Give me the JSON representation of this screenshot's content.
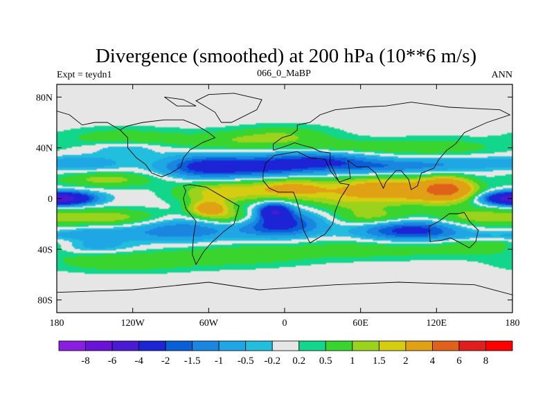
{
  "chart_data": {
    "type": "heatmap",
    "title": "Divergence (smoothed) at 200 hPa (10**6 m/s)",
    "left_string": "Expt = teydn1",
    "center_string": "066_0_MaBP",
    "right_string": "ANN",
    "x_range": [
      -180,
      180
    ],
    "y_range": [
      -90,
      90
    ],
    "x_ticks": [
      {
        "value": -180,
        "label": "180"
      },
      {
        "value": -120,
        "label": "120W"
      },
      {
        "value": -60,
        "label": "60W"
      },
      {
        "value": 0,
        "label": "0"
      },
      {
        "value": 60,
        "label": "60E"
      },
      {
        "value": 120,
        "label": "120E"
      },
      {
        "value": 180,
        "label": "180"
      }
    ],
    "y_ticks": [
      {
        "value": 80,
        "label": "80N"
      },
      {
        "value": 40,
        "label": "40N"
      },
      {
        "value": 0,
        "label": "0"
      },
      {
        "value": -40,
        "label": "40S"
      },
      {
        "value": -80,
        "label": "80S"
      }
    ],
    "levels": [
      "-8",
      "-6",
      "-4",
      "-2",
      "-1.5",
      "-1",
      "-0.5",
      "-0.2",
      "0.2",
      "0.5",
      "1",
      "1.5",
      "2",
      "4",
      "6",
      "8"
    ],
    "colors": [
      "#8a1ee0",
      "#6a12d8",
      "#4a1ad2",
      "#1c24d6",
      "#0a5ed8",
      "#1a86e0",
      "#1fa6e4",
      "#22bede",
      "#e6e6e6",
      "#12d68c",
      "#3ad42e",
      "#9ad21c",
      "#d6cc10",
      "#e0a214",
      "#e0621a",
      "#e01e1e",
      "#ff0000"
    ],
    "fields": [
      {
        "lon": -170,
        "lat": 0,
        "value": -3,
        "rlon": 22,
        "rlat": 5
      },
      {
        "lon": 175,
        "lat": 0,
        "value": -3,
        "rlon": 20,
        "rlat": 5
      },
      {
        "lon": -140,
        "lat": 15,
        "value": 1.2,
        "rlon": 40,
        "rlat": 6
      },
      {
        "lon": -140,
        "lat": -15,
        "value": 1.3,
        "rlon": 45,
        "rlat": 7
      },
      {
        "lon": -155,
        "lat": 28,
        "value": -0.8,
        "rlon": 30,
        "rlat": 6
      },
      {
        "lon": -150,
        "lat": -28,
        "value": -0.9,
        "rlon": 35,
        "rlat": 6
      },
      {
        "lon": -130,
        "lat": 48,
        "value": 0.8,
        "rlon": 45,
        "rlat": 8
      },
      {
        "lon": -130,
        "lat": -50,
        "value": 0.9,
        "rlon": 55,
        "rlat": 8
      },
      {
        "lon": -125,
        "lat": 40,
        "value": -0.7,
        "rlon": 30,
        "rlat": 5
      },
      {
        "lon": -150,
        "lat": -38,
        "value": -0.8,
        "rlon": 30,
        "rlat": 5
      },
      {
        "lon": -80,
        "lat": -25,
        "value": -1.5,
        "rlon": 40,
        "rlat": 9
      },
      {
        "lon": -60,
        "lat": 25,
        "value": -2.5,
        "rlon": 35,
        "rlat": 9
      },
      {
        "lon": -50,
        "lat": 5,
        "value": 1.8,
        "rlon": 35,
        "rlat": 9
      },
      {
        "lon": -60,
        "lat": -8,
        "value": 2.5,
        "rlon": 15,
        "rlat": 6
      },
      {
        "lon": -40,
        "lat": -15,
        "value": 1.5,
        "rlon": 25,
        "rlat": 7
      },
      {
        "lon": -45,
        "lat": 45,
        "value": 0.8,
        "rlon": 55,
        "rlat": 8
      },
      {
        "lon": -40,
        "lat": -45,
        "value": 0.8,
        "rlon": 60,
        "rlat": 9
      },
      {
        "lon": -10,
        "lat": 25,
        "value": -1.8,
        "rlon": 35,
        "rlat": 8
      },
      {
        "lon": -5,
        "lat": -20,
        "value": -2.5,
        "rlon": 32,
        "rlat": 10
      },
      {
        "lon": -8,
        "lat": -10,
        "value": -3.5,
        "rlon": 12,
        "rlat": 6
      },
      {
        "lon": 5,
        "lat": 8,
        "value": 2.2,
        "rlon": 30,
        "rlat": 8
      },
      {
        "lon": 0,
        "lat": 50,
        "value": 0.8,
        "rlon": 40,
        "rlat": 8
      },
      {
        "lon": 30,
        "lat": 30,
        "value": -1.8,
        "rlon": 40,
        "rlat": 8
      },
      {
        "lon": 50,
        "lat": 0,
        "value": 1.3,
        "rlon": 35,
        "rlat": 10
      },
      {
        "lon": 45,
        "lat": 40,
        "value": 0.8,
        "rlon": 40,
        "rlat": 6
      },
      {
        "lon": 70,
        "lat": 10,
        "value": 1.5,
        "rlon": 35,
        "rlat": 8
      },
      {
        "lon": 70,
        "lat": -15,
        "value": 1.2,
        "rlon": 30,
        "rlat": 7
      },
      {
        "lon": 80,
        "lat": 25,
        "value": -1.2,
        "rlon": 45,
        "rlat": 6
      },
      {
        "lon": 70,
        "lat": -40,
        "value": 0.8,
        "rlon": 80,
        "rlat": 8
      },
      {
        "lon": 100,
        "lat": -25,
        "value": -2.5,
        "rlon": 40,
        "rlat": 8
      },
      {
        "lon": 110,
        "lat": 5,
        "value": 2.2,
        "rlon": 40,
        "rlat": 10
      },
      {
        "lon": 128,
        "lat": 8,
        "value": 3.5,
        "rlon": 18,
        "rlat": 8
      },
      {
        "lon": 120,
        "lat": 40,
        "value": 0.8,
        "rlon": 55,
        "rlat": 8
      },
      {
        "lon": 140,
        "lat": 28,
        "value": -0.8,
        "rlon": 45,
        "rlat": 6
      },
      {
        "lon": 150,
        "lat": -15,
        "value": 1.2,
        "rlon": 40,
        "rlat": 8
      },
      {
        "lon": 160,
        "lat": -35,
        "value": 0.8,
        "rlon": 35,
        "rlat": 8
      },
      {
        "lon": 160,
        "lat": -30,
        "value": -0.8,
        "rlon": 30,
        "rlat": 4
      }
    ],
    "coastlines": [
      [
        [
          -130,
          54
        ],
        [
          -125,
          57
        ],
        [
          -112,
          60
        ],
        [
          -95,
          62
        ],
        [
          -80,
          62
        ],
        [
          -70,
          58
        ],
        [
          -60,
          52
        ],
        [
          -55,
          48
        ],
        [
          -65,
          44
        ],
        [
          -75,
          38
        ],
        [
          -80,
          32
        ],
        [
          -82,
          25
        ],
        [
          -90,
          20
        ],
        [
          -97,
          17
        ],
        [
          -105,
          20
        ],
        [
          -110,
          27
        ],
        [
          -117,
          32
        ],
        [
          -124,
          40
        ],
        [
          -124,
          48
        ],
        [
          -130,
          54
        ]
      ],
      [
        [
          -80,
          10
        ],
        [
          -75,
          11
        ],
        [
          -62,
          9
        ],
        [
          -50,
          2
        ],
        [
          -36,
          -6
        ],
        [
          -40,
          -20
        ],
        [
          -48,
          -26
        ],
        [
          -58,
          -35
        ],
        [
          -64,
          -42
        ],
        [
          -70,
          -52
        ],
        [
          -73,
          -44
        ],
        [
          -72,
          -30
        ],
        [
          -70,
          -18
        ],
        [
          -78,
          -8
        ],
        [
          -80,
          0
        ],
        [
          -78,
          6
        ],
        [
          -80,
          10
        ]
      ],
      [
        [
          -17,
          20
        ],
        [
          -15,
          28
        ],
        [
          -8,
          34
        ],
        [
          10,
          37
        ],
        [
          20,
          32
        ],
        [
          32,
          31
        ],
        [
          36,
          22
        ],
        [
          44,
          12
        ],
        [
          51,
          11
        ],
        [
          44,
          0
        ],
        [
          40,
          -10
        ],
        [
          38,
          -20
        ],
        [
          32,
          -28
        ],
        [
          20,
          -35
        ],
        [
          15,
          -25
        ],
        [
          12,
          -10
        ],
        [
          9,
          0
        ],
        [
          7,
          5
        ],
        [
          -5,
          5
        ],
        [
          -12,
          8
        ],
        [
          -17,
          14
        ],
        [
          -17,
          20
        ]
      ],
      [
        [
          -9,
          38
        ],
        [
          -9,
          43
        ],
        [
          -2,
          48
        ],
        [
          5,
          50
        ],
        [
          10,
          54
        ],
        [
          10,
          58
        ],
        [
          20,
          60
        ],
        [
          28,
          66
        ],
        [
          40,
          70
        ],
        [
          60,
          72
        ],
        [
          80,
          73
        ],
        [
          100,
          76
        ],
        [
          130,
          72
        ],
        [
          150,
          71
        ],
        [
          170,
          70
        ],
        [
          178,
          66
        ],
        [
          160,
          60
        ],
        [
          142,
          52
        ],
        [
          135,
          43
        ],
        [
          128,
          38
        ],
        [
          122,
          31
        ],
        [
          118,
          24
        ],
        [
          108,
          20
        ],
        [
          105,
          10
        ],
        [
          100,
          7
        ],
        [
          98,
          15
        ],
        [
          92,
          22
        ],
        [
          88,
          22
        ],
        [
          80,
          13
        ],
        [
          78,
          8
        ],
        [
          72,
          20
        ],
        [
          66,
          25
        ],
        [
          57,
          25
        ],
        [
          50,
          30
        ],
        [
          52,
          16
        ],
        [
          43,
          13
        ],
        [
          36,
          28
        ],
        [
          36,
          36
        ],
        [
          28,
          37
        ],
        [
          22,
          40
        ],
        [
          14,
          42
        ],
        [
          8,
          44
        ],
        [
          3,
          42
        ],
        [
          -9,
          38
        ]
      ],
      [
        [
          114,
          -22
        ],
        [
          122,
          -18
        ],
        [
          130,
          -12
        ],
        [
          137,
          -12
        ],
        [
          142,
          -11
        ],
        [
          146,
          -18
        ],
        [
          153,
          -25
        ],
        [
          151,
          -34
        ],
        [
          146,
          -39
        ],
        [
          137,
          -34
        ],
        [
          131,
          -31
        ],
        [
          124,
          -33
        ],
        [
          115,
          -34
        ],
        [
          114,
          -22
        ]
      ],
      [
        [
          -50,
          60
        ],
        [
          -42,
          60
        ],
        [
          -22,
          70
        ],
        [
          -18,
          78
        ],
        [
          -40,
          83
        ],
        [
          -60,
          82
        ],
        [
          -70,
          77
        ],
        [
          -55,
          68
        ],
        [
          -50,
          60
        ]
      ],
      [
        [
          -180,
          -74
        ],
        [
          -120,
          -72
        ],
        [
          -60,
          -66
        ],
        [
          -20,
          -72
        ],
        [
          40,
          -68
        ],
        [
          90,
          -66
        ],
        [
          150,
          -68
        ],
        [
          180,
          -76
        ]
      ],
      [
        [
          -180,
          69
        ],
        [
          -170,
          66
        ],
        [
          -160,
          58
        ],
        [
          -150,
          60
        ],
        [
          -140,
          60
        ],
        [
          -130,
          54
        ]
      ],
      [
        [
          -85,
          73
        ],
        [
          -70,
          73
        ],
        [
          -80,
          78
        ],
        [
          -95,
          80
        ],
        [
          -85,
          73
        ]
      ]
    ]
  }
}
